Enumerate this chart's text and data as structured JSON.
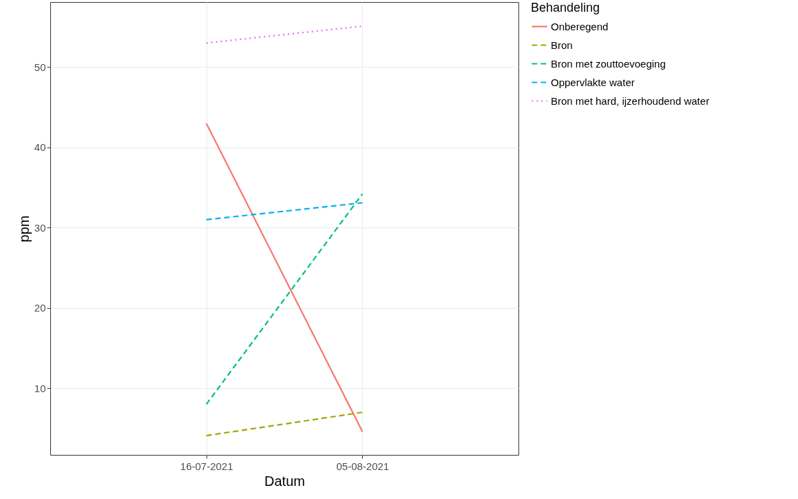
{
  "chart_data": {
    "type": "line",
    "xlabel": "Datum",
    "ylabel": "ppm",
    "legend_title": "Behandeling",
    "legend": "right",
    "grid": true,
    "categories": [
      "16-07-2021",
      "05-08-2021"
    ],
    "ylim": [
      1.7,
      58.1
    ],
    "yticks": [
      10,
      20,
      30,
      40,
      50
    ],
    "series": [
      {
        "name": "Onberegend",
        "color": "#f8766d",
        "line_style": "solid",
        "values": [
          43,
          4.6
        ]
      },
      {
        "name": "Bron",
        "color": "#a3a500",
        "line_style": "dashed",
        "values": [
          4.1,
          7
        ]
      },
      {
        "name": "Bron met zouttoevoeging",
        "color": "#00bf7d",
        "line_style": "dashed",
        "values": [
          8,
          34.2
        ]
      },
      {
        "name": "Oppervlakte water",
        "color": "#00b0f6",
        "line_style": "dashed",
        "values": [
          31,
          33.1
        ]
      },
      {
        "name": "Bron met hard, ijzerhoudend water",
        "color": "#e76bf3",
        "line_style": "dotted",
        "values": [
          53,
          55.1
        ]
      }
    ]
  }
}
